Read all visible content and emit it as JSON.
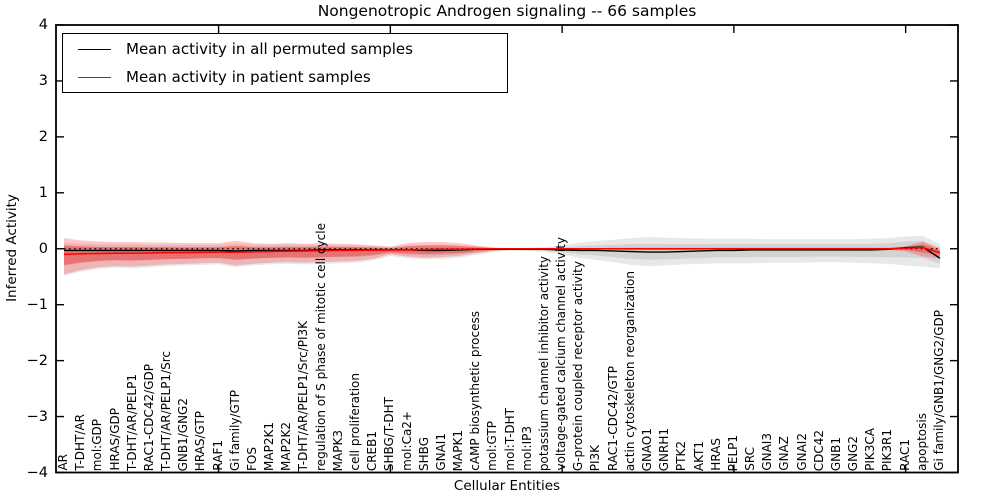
{
  "title": "Nongenotropic Androgen signaling -- 66 samples",
  "axes": {
    "ylabel": "Inferred Activity",
    "xlabel": "Cellular Entities",
    "ytick_labels": [
      "4",
      "3",
      "2",
      "1",
      "0",
      "−1",
      "−2",
      "−3",
      "−4"
    ],
    "ytick_values": [
      4,
      3,
      2,
      1,
      0,
      -1,
      -2,
      -3,
      -4
    ]
  },
  "legend": {
    "entries": [
      {
        "label": "Mean activity in all permuted samples",
        "color": "#000000"
      },
      {
        "label": "Mean activity in patient samples",
        "color": "#ff0000"
      }
    ]
  },
  "colors": {
    "permuted_line": "#000000",
    "patient_line": "#ff0000",
    "permuted_band": "rgba(0,0,0,0.09)",
    "permuted_band_inner": "rgba(0,0,0,0.09)",
    "patient_band": "rgba(255,0,0,0.22)",
    "patient_band_inner": "rgba(255,0,0,0.30)",
    "zero_line": "#000000",
    "frame": "#000000"
  },
  "chart_data": {
    "type": "line",
    "title": "Nongenotropic Androgen signaling -- 66 samples",
    "xlabel": "Cellular Entities",
    "ylabel": "Inferred Activity",
    "ylim": [
      -4,
      4
    ],
    "grid": false,
    "legend_position": "upper left",
    "zero_reference_line": "dotted",
    "major_xtick_indices": [
      9,
      19,
      29,
      39,
      49
    ],
    "categories": [
      "AR",
      "T-DHT/AR",
      "mol:GDP",
      "HRAS/GDP",
      "T-DHT/AR/PELP1",
      "RAC1-CDC42/GDP",
      "T-DHT/AR/PELP1/Src",
      "GNB1/GNG2",
      "HRAS/GTP",
      "RAF1",
      "Gi family/GTP",
      "FOS",
      "MAP2K1",
      "MAP2K2",
      "T-DHT/AR/PELP1/Src/PI3K",
      "regulation of S phase of mitotic cell cycle",
      "MAPK3",
      "cell proliferation",
      "CREB1",
      "SHBG/T-DHT",
      "mol:Ca2+",
      "SHBG",
      "GNAI1",
      "MAPK1",
      "cAMP biosynthetic process",
      "mol:GTP",
      "mol:T-DHT",
      "mol:IP3",
      "potassium channel inhibitor activity",
      "voltage-gated calcium channel activity",
      "G-protein coupled receptor activity",
      "PI3K",
      "RAC1-CDC42/GTP",
      "actin cytoskeleton reorganization",
      "GNAO1",
      "GNRH1",
      "PTK2",
      "AKT1",
      "HRAS",
      "PELP1",
      "SRC",
      "GNAI3",
      "GNAZ",
      "GNAI2",
      "CDC42",
      "GNB1",
      "GNG2",
      "PIK3CA",
      "PIK3R1",
      "RAC1",
      "apoptosis",
      "Gi family/GNB1/GNG2/GDP"
    ],
    "series": [
      {
        "name": "Mean activity in all permuted samples",
        "color": "#000000",
        "values": [
          -0.03,
          -0.03,
          -0.03,
          -0.03,
          -0.03,
          -0.03,
          -0.03,
          -0.03,
          -0.03,
          -0.03,
          -0.04,
          -0.03,
          -0.03,
          -0.03,
          -0.03,
          -0.02,
          -0.02,
          -0.02,
          -0.02,
          -0.02,
          -0.02,
          -0.03,
          -0.03,
          -0.02,
          -0.01,
          -0.01,
          -0.01,
          -0.01,
          -0.01,
          -0.02,
          -0.03,
          -0.03,
          -0.04,
          -0.05,
          -0.06,
          -0.06,
          -0.05,
          -0.04,
          -0.03,
          -0.03,
          -0.02,
          -0.02,
          -0.02,
          -0.02,
          -0.02,
          -0.02,
          -0.02,
          -0.02,
          -0.01,
          0.02,
          0.03,
          -0.17
        ],
        "band_hi": [
          0.1,
          0.09,
          0.08,
          0.08,
          0.08,
          0.07,
          0.07,
          0.07,
          0.07,
          0.07,
          0.09,
          0.07,
          0.07,
          0.07,
          0.07,
          0.07,
          0.06,
          0.06,
          0.05,
          0.03,
          0.06,
          0.07,
          0.07,
          0.06,
          0.04,
          0.02,
          0.01,
          0.02,
          0.03,
          0.06,
          0.11,
          0.14,
          0.16,
          0.19,
          0.21,
          0.2,
          0.19,
          0.18,
          0.18,
          0.18,
          0.18,
          0.17,
          0.17,
          0.17,
          0.17,
          0.17,
          0.17,
          0.18,
          0.19,
          0.22,
          0.23,
          0.08
        ],
        "band_lo": [
          -0.48,
          -0.41,
          -0.36,
          -0.34,
          -0.35,
          -0.33,
          -0.31,
          -0.3,
          -0.29,
          -0.28,
          -0.33,
          -0.3,
          -0.28,
          -0.27,
          -0.28,
          -0.27,
          -0.26,
          -0.25,
          -0.21,
          -0.13,
          -0.17,
          -0.19,
          -0.18,
          -0.16,
          -0.11,
          -0.06,
          -0.03,
          -0.04,
          -0.06,
          -0.1,
          -0.16,
          -0.2,
          -0.24,
          -0.29,
          -0.31,
          -0.3,
          -0.28,
          -0.27,
          -0.26,
          -0.26,
          -0.26,
          -0.25,
          -0.25,
          -0.25,
          -0.24,
          -0.24,
          -0.25,
          -0.26,
          -0.27,
          -0.3,
          -0.32,
          -0.35
        ]
      },
      {
        "name": "Mean activity in patient samples",
        "color": "#ff0000",
        "values": [
          -0.1,
          -0.09,
          -0.085,
          -0.08,
          -0.08,
          -0.075,
          -0.07,
          -0.07,
          -0.065,
          -0.06,
          -0.06,
          -0.055,
          -0.05,
          -0.045,
          -0.04,
          -0.035,
          -0.03,
          -0.03,
          -0.025,
          -0.02,
          -0.02,
          -0.015,
          -0.01,
          -0.01,
          -0.005,
          0,
          0,
          0,
          0,
          0,
          0,
          0,
          0,
          0,
          0,
          0,
          0,
          0,
          0,
          0,
          0,
          0,
          0,
          0,
          0,
          0,
          0,
          0,
          0,
          0.01,
          0.02,
          -0.07
        ],
        "band_hi": [
          0.19,
          0.15,
          0.13,
          0.12,
          0.12,
          0.11,
          0.11,
          0.1,
          0.1,
          0.1,
          0.14,
          0.1,
          0.09,
          0.1,
          0.09,
          0.1,
          0.09,
          0.08,
          0.06,
          0.04,
          0.1,
          0.12,
          0.12,
          0.1,
          0.06,
          0.02,
          0.01,
          0.01,
          0.01,
          0.01,
          0.01,
          0.01,
          0.02,
          0.02,
          0.02,
          0.02,
          0.02,
          0.02,
          0.02,
          0.02,
          0.02,
          0.02,
          0.02,
          0.02,
          0.02,
          0.02,
          0.02,
          0.02,
          0.02,
          0.04,
          0.13,
          0.02
        ],
        "band_lo": [
          -0.46,
          -0.38,
          -0.33,
          -0.31,
          -0.32,
          -0.3,
          -0.28,
          -0.27,
          -0.26,
          -0.25,
          -0.3,
          -0.27,
          -0.25,
          -0.24,
          -0.25,
          -0.24,
          -0.23,
          -0.22,
          -0.18,
          -0.1,
          -0.14,
          -0.16,
          -0.15,
          -0.13,
          -0.08,
          -0.04,
          -0.02,
          -0.02,
          -0.02,
          -0.02,
          -0.02,
          -0.02,
          -0.02,
          -0.03,
          -0.03,
          -0.03,
          -0.03,
          -0.02,
          -0.02,
          -0.02,
          -0.02,
          -0.02,
          -0.02,
          -0.02,
          -0.02,
          -0.02,
          -0.02,
          -0.02,
          -0.02,
          -0.05,
          -0.14,
          -0.17
        ]
      }
    ]
  }
}
